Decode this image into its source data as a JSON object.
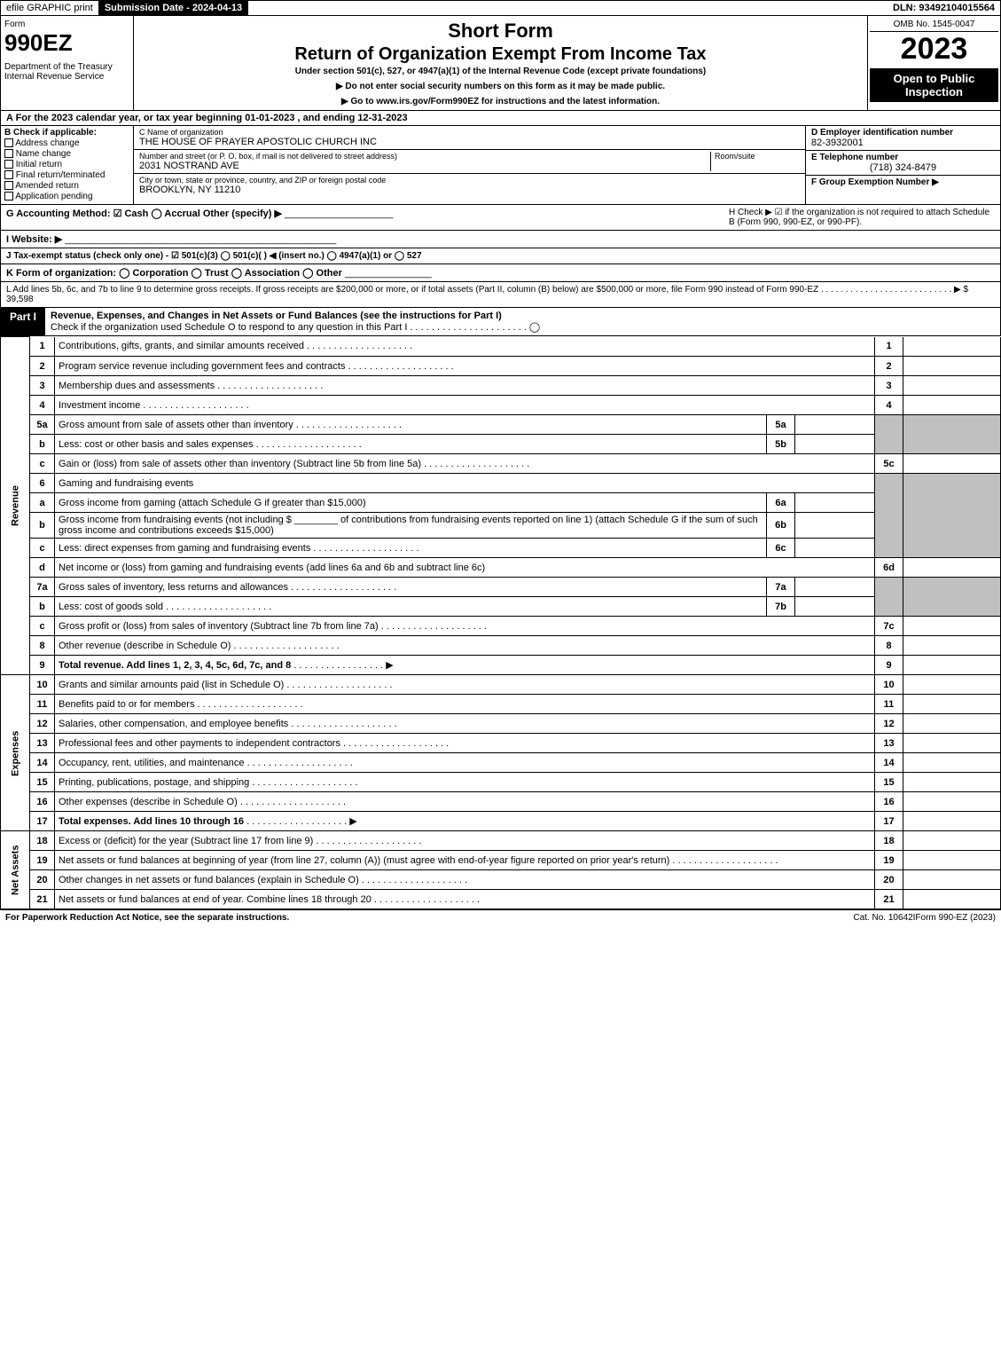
{
  "topbar": {
    "efile": "efile GRAPHIC print",
    "subdate_lbl": "Submission Date - 2024-04-13",
    "dln": "DLN: 93492104015564"
  },
  "header": {
    "form_word": "Form",
    "form_num": "990EZ",
    "dept": "Department of the Treasury\nInternal Revenue Service",
    "short": "Short Form",
    "return": "Return of Organization Exempt From Income Tax",
    "under": "Under section 501(c), 527, or 4947(a)(1) of the Internal Revenue Code (except private foundations)",
    "arrow1": "▶ Do not enter social security numbers on this form as it may be made public.",
    "arrow2": "▶ Go to www.irs.gov/Form990EZ for instructions and the latest information.",
    "omb": "OMB No. 1545-0047",
    "year": "2023",
    "open": "Open to Public Inspection"
  },
  "row_a": "A  For the 2023 calendar year, or tax year beginning 01-01-2023 , and ending 12-31-2023",
  "col_b": {
    "hdr": "B  Check if applicable:",
    "opts": [
      "Address change",
      "Name change",
      "Initial return",
      "Final return/terminated",
      "Amended return",
      "Application pending"
    ]
  },
  "col_c": {
    "name_lbl": "C Name of organization",
    "name": "THE HOUSE OF PRAYER APOSTOLIC CHURCH INC",
    "street_lbl": "Number and street (or P. O. box, if mail is not delivered to street address)",
    "street": "2031 NOSTRAND AVE",
    "suite_lbl": "Room/suite",
    "city_lbl": "City or town, state or province, country, and ZIP or foreign postal code",
    "city": "BROOKLYN, NY  11210"
  },
  "col_d": {
    "ein_lbl": "D Employer identification number",
    "ein": "82-3932001",
    "tel_lbl": "E Telephone number",
    "tel": "(718) 324-8479",
    "grp_lbl": "F Group Exemption Number  ▶"
  },
  "row_g": "G Accounting Method:   ☑ Cash  ◯ Accrual  Other (specify) ▶",
  "row_h": "H  Check ▶ ☑ if the organization is not required to attach Schedule B (Form 990, 990-EZ, or 990-PF).",
  "row_i": "I Website: ▶",
  "row_j": "J Tax-exempt status (check only one) - ☑ 501(c)(3) ◯ 501(c)(  ) ◀ (insert no.) ◯ 4947(a)(1) or ◯ 527",
  "row_k": "K Form of organization:  ◯ Corporation  ◯ Trust  ◯ Association  ◯ Other",
  "row_l": "L Add lines 5b, 6c, and 7b to line 9 to determine gross receipts. If gross receipts are $200,000 or more, or if total assets (Part II, column (B) below) are $500,000 or more, file Form 990 instead of Form 990-EZ  . . . . . . . . . . . . . . . . . . . . . . . . . . .  ▶ $ 39,598",
  "part1": {
    "lbl": "Part I",
    "title": "Revenue, Expenses, and Changes in Net Assets or Fund Balances (see the instructions for Part I)",
    "check": "Check if the organization used Schedule O to respond to any question in this Part I . . . . . . . . . . . . . . . . . . . . . .  ◯"
  },
  "sides": {
    "rev": "Revenue",
    "exp": "Expenses",
    "na": "Net Assets"
  },
  "lines": {
    "1": "Contributions, gifts, grants, and similar amounts received",
    "2": "Program service revenue including government fees and contracts",
    "3": "Membership dues and assessments",
    "4": "Investment income",
    "5a": "Gross amount from sale of assets other than inventory",
    "5b": "Less: cost or other basis and sales expenses",
    "5c": "Gain or (loss) from sale of assets other than inventory (Subtract line 5b from line 5a)",
    "6": "Gaming and fundraising events",
    "6a": "Gross income from gaming (attach Schedule G if greater than $15,000)",
    "6b1": "Gross income from fundraising events (not including $",
    "6b2": "of contributions from fundraising events reported on line 1) (attach Schedule G if the sum of such gross income and contributions exceeds $15,000)",
    "6c": "Less: direct expenses from gaming and fundraising events",
    "6d": "Net income or (loss) from gaming and fundraising events (add lines 6a and 6b and subtract line 6c)",
    "7a": "Gross sales of inventory, less returns and allowances",
    "7b": "Less: cost of goods sold",
    "7c": "Gross profit or (loss) from sales of inventory (Subtract line 7b from line 7a)",
    "8": "Other revenue (describe in Schedule O)",
    "9": "Total revenue. Add lines 1, 2, 3, 4, 5c, 6d, 7c, and 8",
    "10": "Grants and similar amounts paid (list in Schedule O)",
    "11": "Benefits paid to or for members",
    "12": "Salaries, other compensation, and employee benefits",
    "13": "Professional fees and other payments to independent contractors",
    "14": "Occupancy, rent, utilities, and maintenance",
    "15": "Printing, publications, postage, and shipping",
    "16": "Other expenses (describe in Schedule O)",
    "17": "Total expenses. Add lines 10 through 16",
    "18": "Excess or (deficit) for the year (Subtract line 17 from line 9)",
    "19": "Net assets or fund balances at beginning of year (from line 27, column (A)) (must agree with end-of-year figure reported on prior year's return)",
    "20": "Other changes in net assets or fund balances (explain in Schedule O)",
    "21": "Net assets or fund balances at end of year. Combine lines 18 through 20"
  },
  "footer": {
    "l": "For Paperwork Reduction Act Notice, see the separate instructions.",
    "m": "Cat. No. 10642I",
    "r": "Form 990-EZ (2023)"
  }
}
